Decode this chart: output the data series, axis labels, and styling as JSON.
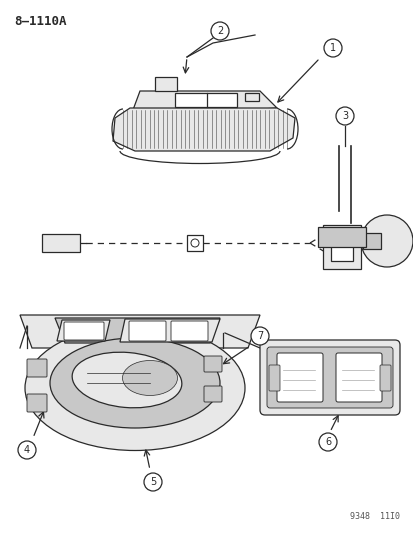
{
  "title": "8–1110A",
  "background_color": "#ffffff",
  "figsize": [
    4.14,
    5.33
  ],
  "dpi": 100,
  "watermark": "9348  11I0",
  "line_color": "#2a2a2a",
  "gray_fill": "#c8c8c8",
  "light_fill": "#e8e8e8",
  "white_fill": "#ffffff"
}
